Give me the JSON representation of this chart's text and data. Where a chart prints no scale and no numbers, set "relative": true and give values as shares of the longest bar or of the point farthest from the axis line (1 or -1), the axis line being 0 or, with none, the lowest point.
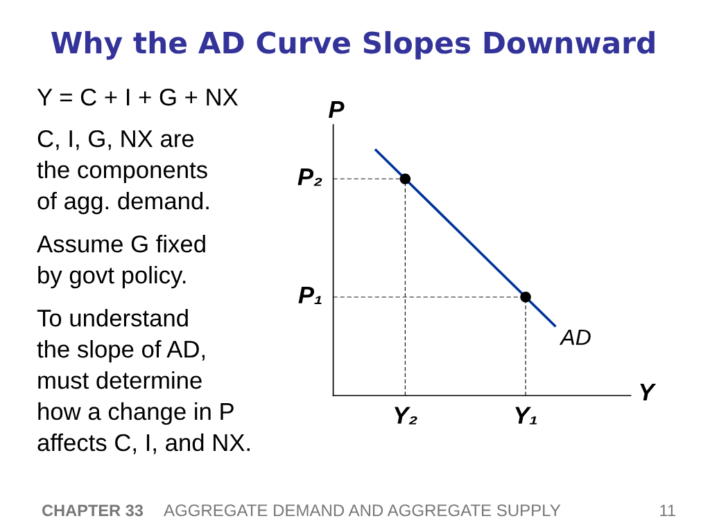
{
  "chart_data": {
    "type": "line",
    "title": "Why the AD Curve Slopes Downward",
    "xlabel": "Y",
    "ylabel": "P",
    "relative": true,
    "categories": [
      null,
      "Y₂",
      null,
      null,
      null,
      "Y₁",
      null
    ],
    "series": [
      {
        "name": "AD",
        "color": "#003399",
        "values": [
          1,
          0.88,
          0.76,
          0.64,
          0.52,
          0.4,
          0.28
        ]
      },
      {
        "type": "lollipop",
        "line_style": "dashed",
        "marker": "circle",
        "color": "#000000",
        "values": [
          null,
          0.88,
          null,
          null,
          null,
          0.4,
          null
        ]
      }
    ],
    "ref_lines": [
      {
        "axis": "y",
        "value": 0.88,
        "label": "P₂",
        "line_style": "dashed",
        "color": "#444444"
      },
      {
        "axis": "y",
        "value": 0.4,
        "label": "P₁",
        "line_style": "dashed",
        "color": "#444444"
      }
    ],
    "annotations": [
      "Y = C + I + G + NX",
      "C, I, G, NX are\nthe components\nof agg. demand.",
      "Assume G fixed\nby govt policy.",
      "To understand\nthe slope of AD,\nmust determine\nhow a change in P\naffects C, I, and NX.",
      "CHAPTER 33",
      "AGGREGATE DEMAND AND AGGREGATE SUPPLY",
      "11"
    ]
  }
}
